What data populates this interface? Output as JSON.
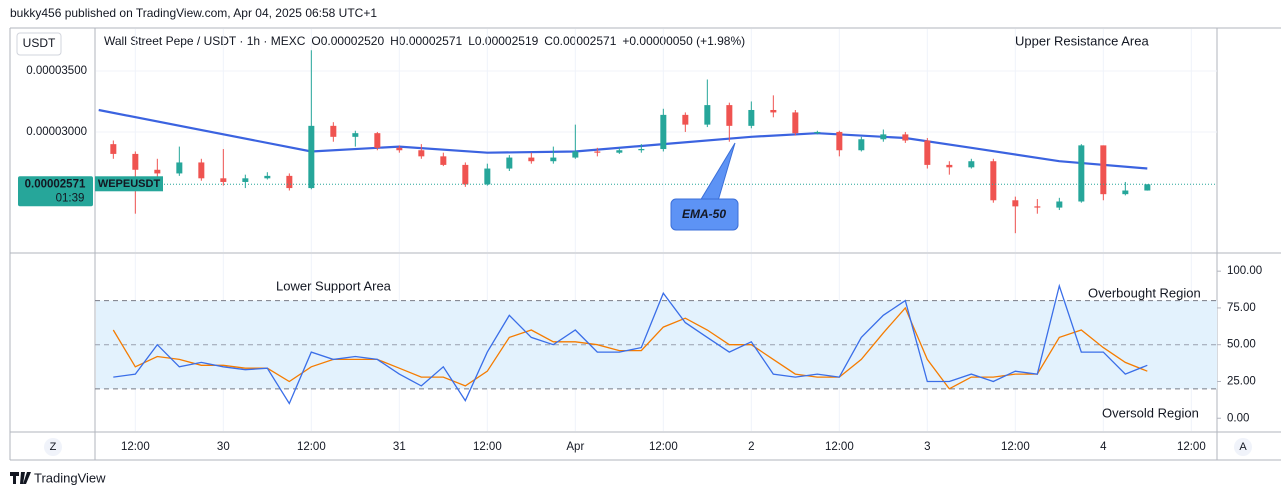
{
  "header": {
    "published": "bukky456 published on TradingView.com, Apr 04, 2025 06:58 UTC+1",
    "symbol": "Wall Street Pepe / USDT · 1h · MEXC",
    "ohlc": [
      "O0.00002520",
      "H0.00002571",
      "L0.00002519",
      "C0.00002571",
      "+0.00000050 (+1.98%)"
    ],
    "currency": "USDT",
    "ticker": "WEPEUSDT",
    "countdown": "01:39"
  },
  "footer": {
    "brand": "TradingView",
    "left_button": "Z",
    "right_button": "A"
  },
  "chart_data": [
    {
      "type": "candlestick",
      "x": [
        2,
        5,
        8,
        11,
        14,
        17,
        20,
        23,
        26,
        29,
        32,
        35,
        38,
        41,
        44,
        47,
        50,
        53,
        56,
        59,
        62,
        65,
        68,
        71,
        74,
        77,
        80,
        83,
        86,
        89,
        92,
        95,
        98,
        101,
        104,
        107,
        110,
        113,
        116,
        119,
        122,
        125,
        128,
        131,
        134,
        137,
        140,
        143
      ],
      "open": [
        2.9e-05,
        2.82e-05,
        2.69e-05,
        2.66e-05,
        2.75e-05,
        2.62e-05,
        2.59e-05,
        2.62e-05,
        2.64e-05,
        2.54e-05,
        3.05e-05,
        2.96e-05,
        2.99e-05,
        2.87e-05,
        2.85e-05,
        2.8e-05,
        2.73e-05,
        2.57e-05,
        2.7e-05,
        2.79e-05,
        2.76e-05,
        2.79e-05,
        2.84e-05,
        2.83e-05,
        2.85e-05,
        2.86e-05,
        3.14e-05,
        3.06e-05,
        3.22e-05,
        3.05e-05,
        3.18e-05,
        3.16e-05,
        2.99e-05,
        3e-05,
        2.85e-05,
        2.94e-05,
        2.98e-05,
        2.93e-05,
        2.73e-05,
        2.71e-05,
        2.76e-05,
        2.44e-05,
        2.39e-05,
        2.38e-05,
        2.43e-05,
        2.89e-05,
        2.49e-05,
        2.52e-05
      ],
      "high": [
        2.93e-05,
        2.84e-05,
        2.78e-05,
        2.88e-05,
        2.78e-05,
        2.86e-05,
        2.65e-05,
        2.67e-05,
        2.66e-05,
        3.67e-05,
        3.08e-05,
        3.01e-05,
        3e-05,
        2.89e-05,
        2.9e-05,
        2.83e-05,
        2.75e-05,
        2.74e-05,
        2.81e-05,
        2.83e-05,
        2.88e-05,
        3.06e-05,
        2.87e-05,
        2.87e-05,
        2.9e-05,
        3.19e-05,
        3.16e-05,
        3.43e-05,
        3.24e-05,
        3.25e-05,
        3.3e-05,
        3.18e-05,
        3.01e-05,
        3.01e-05,
        2.96e-05,
        3.02e-05,
        3e-05,
        2.95e-05,
        2.76e-05,
        2.78e-05,
        2.78e-05,
        2.47e-05,
        2.45e-05,
        2.46e-05,
        2.9e-05,
        2.89e-05,
        2.59e-05,
        2.571e-05
      ],
      "low": [
        2.78e-05,
        2.33e-05,
        2.6e-05,
        2.64e-05,
        2.6e-05,
        2.56e-05,
        2.54e-05,
        2.61e-05,
        2.52e-05,
        2.53e-05,
        2.92e-05,
        2.88e-05,
        2.85e-05,
        2.83e-05,
        2.78e-05,
        2.72e-05,
        2.55e-05,
        2.56e-05,
        2.68e-05,
        2.74e-05,
        2.74e-05,
        2.78e-05,
        2.8e-05,
        2.82e-05,
        2.83e-05,
        2.84e-05,
        3e-05,
        3.04e-05,
        2.92e-05,
        3.03e-05,
        3.12e-05,
        2.97e-05,
        2.98e-05,
        2.8e-05,
        2.84e-05,
        2.92e-05,
        2.91e-05,
        2.7e-05,
        2.65e-05,
        2.7e-05,
        2.42e-05,
        2.17e-05,
        2.33e-05,
        2.36e-05,
        2.42e-05,
        2.44e-05,
        2.48e-05,
        2.519e-05
      ],
      "close": [
        2.82e-05,
        2.69e-05,
        2.66e-05,
        2.75e-05,
        2.62e-05,
        2.59e-05,
        2.62e-05,
        2.64e-05,
        2.54e-05,
        3.05e-05,
        2.96e-05,
        2.99e-05,
        2.87e-05,
        2.85e-05,
        2.8e-05,
        2.73e-05,
        2.57e-05,
        2.7e-05,
        2.79e-05,
        2.76e-05,
        2.79e-05,
        2.84e-05,
        2.83e-05,
        2.85e-05,
        2.86e-05,
        3.14e-05,
        3.06e-05,
        3.22e-05,
        3.05e-05,
        3.18e-05,
        3.16e-05,
        2.99e-05,
        3e-05,
        2.85e-05,
        2.94e-05,
        2.98e-05,
        2.93e-05,
        2.73e-05,
        2.71e-05,
        2.76e-05,
        2.44e-05,
        2.39e-05,
        2.38e-05,
        2.43e-05,
        2.89e-05,
        2.49e-05,
        2.52e-05,
        2.571e-05
      ],
      "up_color": "#26a69a",
      "down_color": "#ef5350",
      "ema": {
        "x": [
          0,
          29,
          41,
          53,
          65,
          77,
          89,
          98,
          110,
          119,
          131,
          143
        ],
        "values": [
          3.18e-05,
          2.84e-05,
          2.88e-05,
          2.83e-05,
          2.84e-05,
          2.9e-05,
          2.96e-05,
          2.99e-05,
          2.95e-05,
          2.87e-05,
          2.76e-05,
          2.7e-05
        ],
        "color": "#3b63e0"
      },
      "xlim": [
        -0.5,
        152.5
      ],
      "xticks": [
        {
          "value": 5,
          "label": "12:00"
        },
        {
          "value": 17,
          "label": "30"
        },
        {
          "value": 29,
          "label": "12:00"
        },
        {
          "value": 41,
          "label": "31"
        },
        {
          "value": 53,
          "label": "12:00"
        },
        {
          "value": 65,
          "label": "Apr"
        },
        {
          "value": 77,
          "label": "12:00"
        },
        {
          "value": 89,
          "label": "2"
        },
        {
          "value": 101,
          "label": "12:00"
        },
        {
          "value": 113,
          "label": "3"
        },
        {
          "value": 125,
          "label": "12:00"
        },
        {
          "value": 137,
          "label": "4"
        },
        {
          "value": 149,
          "label": "12:00"
        }
      ],
      "ylim": [
        2.016e-05,
        3.852e-05
      ],
      "yticks": [
        {
          "value": 3.5e-05,
          "label": "0.00003500"
        },
        {
          "value": 3e-05,
          "label": "0.00003000"
        }
      ],
      "last_price": {
        "value": 2.571e-05,
        "label": "0.00002571"
      },
      "annotations": [
        "Upper Resistance Area",
        "EMA-50"
      ]
    },
    {
      "type": "line",
      "x": [
        2,
        5,
        8,
        11,
        14,
        17,
        20,
        23,
        26,
        29,
        32,
        35,
        38,
        41,
        44,
        47,
        50,
        53,
        56,
        59,
        62,
        65,
        68,
        71,
        74,
        77,
        80,
        83,
        86,
        89,
        92,
        95,
        98,
        101,
        104,
        107,
        110,
        113,
        116,
        119,
        122,
        125,
        128,
        131,
        134,
        137,
        140,
        143
      ],
      "series": [
        {
          "color": "#3a6ee8",
          "values": [
            28,
            30,
            50,
            35,
            38,
            35,
            33,
            34,
            10,
            45,
            40,
            42,
            40,
            30,
            22,
            35,
            12,
            45,
            70,
            55,
            50,
            60,
            45,
            45,
            48,
            85,
            65,
            55,
            45,
            52,
            30,
            28,
            30,
            28,
            55,
            70,
            80,
            25,
            25,
            30,
            25,
            32,
            30,
            90,
            45,
            45,
            30,
            36
          ]
        },
        {
          "color": "#f57c00",
          "values": [
            60,
            35,
            42,
            40,
            36,
            36,
            34,
            34,
            25,
            35,
            40,
            40,
            40,
            34,
            28,
            28,
            22,
            32,
            55,
            60,
            52,
            52,
            50,
            46,
            46,
            62,
            68,
            60,
            50,
            50,
            40,
            30,
            28,
            28,
            40,
            58,
            75,
            40,
            20,
            28,
            28,
            30,
            30,
            55,
            60,
            48,
            38,
            32
          ]
        }
      ],
      "xlim": [
        -0.5,
        152.5
      ],
      "ylim": [
        -8,
        111
      ],
      "yticks": [
        {
          "value": 100,
          "label": "100.00"
        },
        {
          "value": 75,
          "label": "75.00"
        },
        {
          "value": 50,
          "label": "50.00"
        },
        {
          "value": 25,
          "label": "25.00"
        },
        {
          "value": 0,
          "label": "0.00"
        }
      ],
      "band": [
        20,
        80
      ],
      "midline": 50,
      "band_color": "#e3f2fd",
      "annotations": [
        "Lower Support Area",
        "Overbought Region",
        "Oversold Region"
      ]
    }
  ]
}
